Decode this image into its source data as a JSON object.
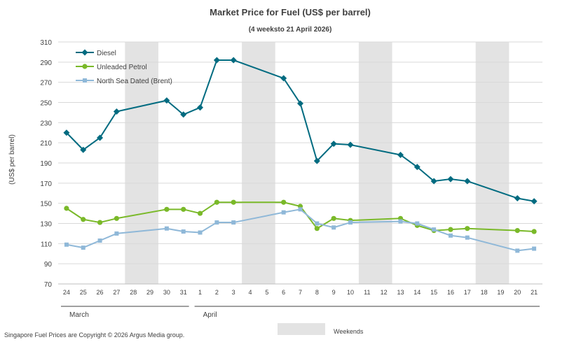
{
  "chart_data": {
    "type": "line",
    "title": "Market Price for Fuel (US$ per barrel)",
    "subtitle": "(4 weeksto 21 April 2026)",
    "ylabel": "(US$ per barrel)",
    "xlabel": "",
    "ylim": [
      70,
      310
    ],
    "yticks": [
      70,
      90,
      110,
      130,
      150,
      170,
      190,
      210,
      230,
      250,
      270,
      290,
      310
    ],
    "grid": true,
    "legend_position": "top-left",
    "categories": [
      "24",
      "25",
      "26",
      "27",
      "28",
      "29",
      "30",
      "31",
      "1",
      "2",
      "3",
      "4",
      "5",
      "6",
      "7",
      "8",
      "9",
      "10",
      "11",
      "12",
      "13",
      "14",
      "15",
      "16",
      "17",
      "18",
      "19",
      "20",
      "21"
    ],
    "month_groups": [
      {
        "label": "March",
        "start": "24",
        "end": "31"
      },
      {
        "label": "April",
        "start": "1",
        "end": "21"
      }
    ],
    "weekend_bands": [
      [
        "28",
        "29"
      ],
      [
        "4",
        "5"
      ],
      [
        "11",
        "12"
      ],
      [
        "18",
        "19"
      ]
    ],
    "series": [
      {
        "name": "Diesel",
        "color": "#006B80",
        "marker": "diamond",
        "values": [
          220,
          203,
          215,
          241,
          null,
          null,
          252,
          238,
          245,
          292,
          292,
          null,
          null,
          274,
          249,
          192,
          209,
          208,
          null,
          null,
          198,
          186,
          172,
          174,
          172,
          null,
          null,
          155,
          152
        ]
      },
      {
        "name": "Unleaded Petrol",
        "color": "#7AB929",
        "marker": "circle",
        "values": [
          145,
          134,
          131,
          135,
          null,
          null,
          144,
          144,
          140,
          151,
          151,
          null,
          null,
          151,
          147,
          125,
          135,
          133,
          null,
          null,
          135,
          128,
          123,
          124,
          125,
          null,
          null,
          123,
          122
        ]
      },
      {
        "name": "North Sea Dated (Brent)",
        "color": "#8FB8D8",
        "marker": "square",
        "values": [
          109,
          106,
          113,
          120,
          null,
          null,
          125,
          122,
          121,
          131,
          131,
          null,
          null,
          141,
          144,
          130,
          126,
          131,
          null,
          null,
          132,
          130,
          124,
          118,
          116,
          null,
          null,
          103,
          105
        ]
      }
    ],
    "weekends_label": "Weekends",
    "copyright": "Singapore Fuel Prices are Copyright © 2026 Argus Media group."
  }
}
